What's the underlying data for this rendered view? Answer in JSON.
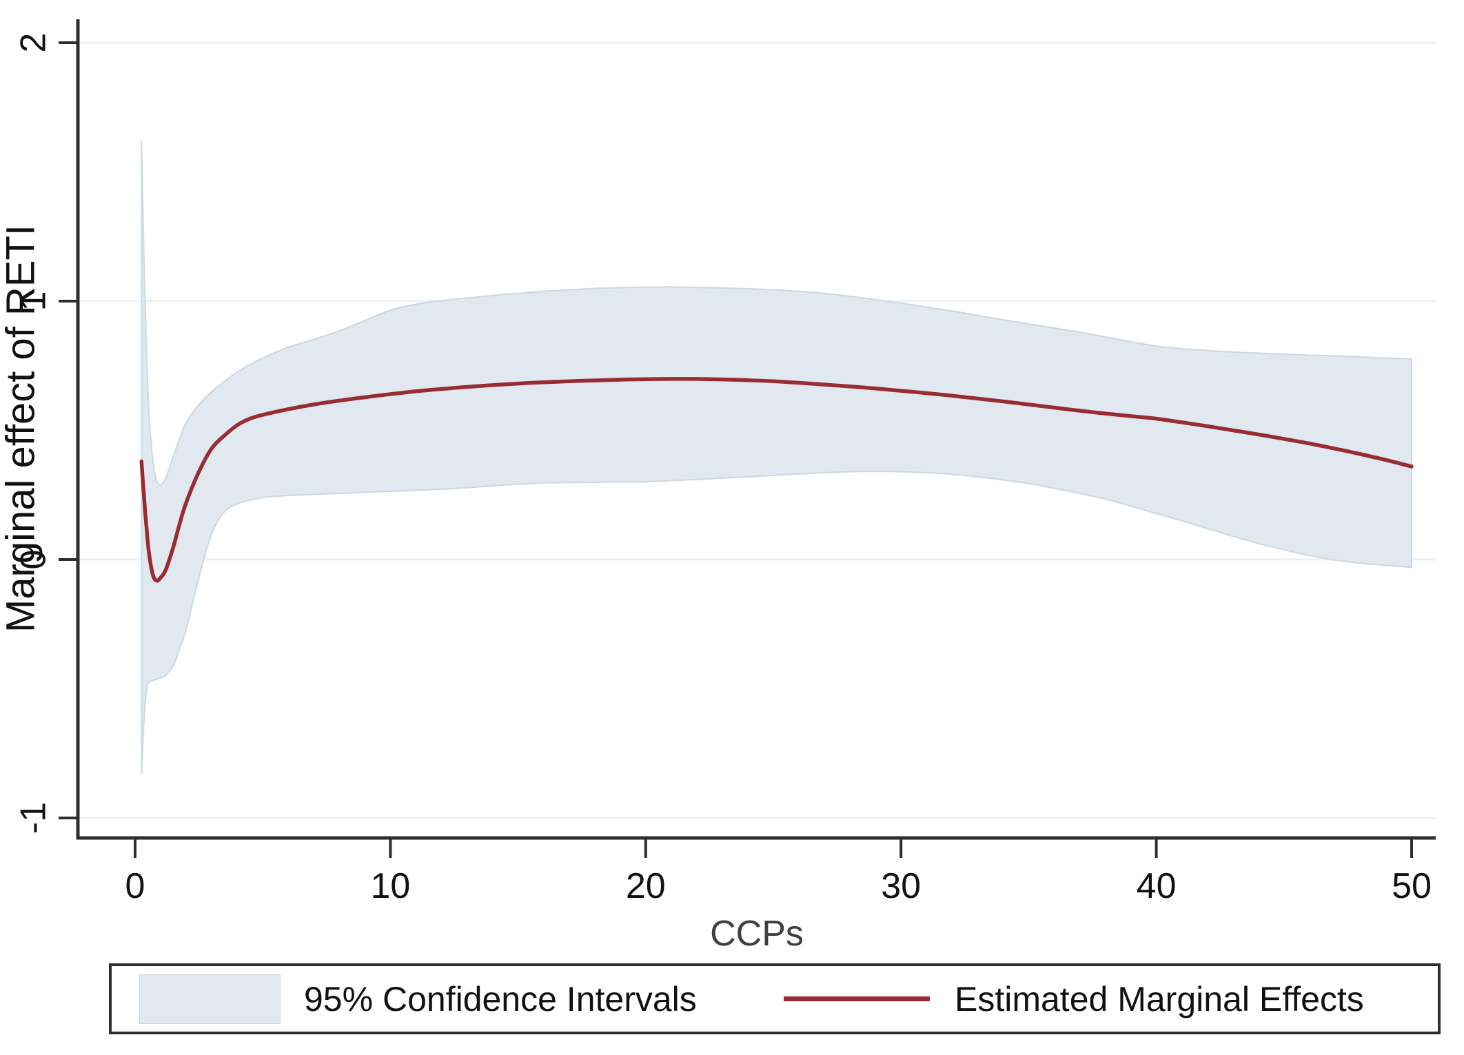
{
  "figure": {
    "background": "#ffffff",
    "axis_color": "#2e2e2e",
    "grid_color": "#e8f1f6",
    "tick_text_color": "#111111",
    "xlabel_color": "#3f3f3f",
    "ylabel_color": "#111111"
  },
  "legend": {
    "entries": [
      {
        "label": "95% Confidence Intervals",
        "swatch": "area",
        "color": "#e1e8ef"
      },
      {
        "label": "Estimated Marginal Effects",
        "swatch": "line",
        "color": "#992c33"
      }
    ]
  },
  "chart_data": {
    "type": "area",
    "title": "",
    "xlabel": "CCPs",
    "ylabel": "Marginal effect of RETI",
    "x_ticks": [
      0,
      10,
      20,
      30,
      40,
      50
    ],
    "y_ticks": [
      -1,
      0,
      1,
      2
    ],
    "xlim": [
      -2.2,
      51.0
    ],
    "ylim": [
      -1.08,
      2.09
    ],
    "grid": true,
    "legend_position": "bottom",
    "band_fill": "#e1e8ef",
    "band_edge": "#cdd8e1",
    "line_color": "#992c33",
    "line_width": 5.5,
    "series": [
      {
        "name": "Estimated Marginal Effects",
        "type": "line",
        "points": [
          [
            0.25,
            0.38
          ],
          [
            0.35,
            0.24
          ],
          [
            0.45,
            0.12
          ],
          [
            0.55,
            0.02
          ],
          [
            0.7,
            -0.06
          ],
          [
            0.85,
            -0.082
          ],
          [
            1,
            -0.07
          ],
          [
            1.2,
            -0.04
          ],
          [
            1.5,
            0.05
          ],
          [
            1.75,
            0.14
          ],
          [
            2,
            0.22
          ],
          [
            2.5,
            0.34
          ],
          [
            3,
            0.43
          ],
          [
            3.5,
            0.48
          ],
          [
            4,
            0.52
          ],
          [
            4.5,
            0.545
          ],
          [
            5,
            0.56
          ],
          [
            6,
            0.582
          ],
          [
            7,
            0.6
          ],
          [
            8,
            0.615
          ],
          [
            9,
            0.628
          ],
          [
            10,
            0.64
          ],
          [
            11,
            0.651
          ],
          [
            12,
            0.66
          ],
          [
            13,
            0.668
          ],
          [
            14,
            0.675
          ],
          [
            15,
            0.681
          ],
          [
            16,
            0.686
          ],
          [
            17,
            0.69
          ],
          [
            18,
            0.693
          ],
          [
            19,
            0.696
          ],
          [
            20,
            0.698
          ],
          [
            21,
            0.699
          ],
          [
            22,
            0.699
          ],
          [
            23,
            0.697
          ],
          [
            24,
            0.694
          ],
          [
            25,
            0.69
          ],
          [
            26,
            0.684
          ],
          [
            27,
            0.677
          ],
          [
            28,
            0.67
          ],
          [
            29,
            0.662
          ],
          [
            30,
            0.653
          ],
          [
            31,
            0.644
          ],
          [
            32,
            0.634
          ],
          [
            33,
            0.623
          ],
          [
            34,
            0.612
          ],
          [
            35,
            0.6
          ],
          [
            36,
            0.588
          ],
          [
            37,
            0.576
          ],
          [
            38,
            0.565
          ],
          [
            39,
            0.555
          ],
          [
            40,
            0.545
          ],
          [
            41,
            0.531
          ],
          [
            42,
            0.516
          ],
          [
            43,
            0.5
          ],
          [
            44,
            0.484
          ],
          [
            45,
            0.467
          ],
          [
            46,
            0.449
          ],
          [
            47,
            0.429
          ],
          [
            48,
            0.408
          ],
          [
            49,
            0.385
          ],
          [
            50,
            0.36
          ]
        ]
      },
      {
        "name": "95% Confidence Intervals",
        "type": "band",
        "points_upper": [
          [
            0.25,
            1.62
          ],
          [
            0.35,
            1.15
          ],
          [
            0.45,
            0.8
          ],
          [
            0.55,
            0.55
          ],
          [
            0.7,
            0.38
          ],
          [
            0.85,
            0.305
          ],
          [
            1,
            0.29
          ],
          [
            1.2,
            0.315
          ],
          [
            1.5,
            0.4
          ],
          [
            1.75,
            0.47
          ],
          [
            2,
            0.53
          ],
          [
            2.5,
            0.6
          ],
          [
            3,
            0.65
          ],
          [
            3.5,
            0.69
          ],
          [
            4,
            0.725
          ],
          [
            4.5,
            0.755
          ],
          [
            5,
            0.78
          ],
          [
            6,
            0.822
          ],
          [
            7,
            0.852
          ],
          [
            8,
            0.885
          ],
          [
            9,
            0.925
          ],
          [
            10,
            0.965
          ],
          [
            11,
            0.988
          ],
          [
            12,
            1.002
          ],
          [
            13,
            1.012
          ],
          [
            14,
            1.022
          ],
          [
            15,
            1.03
          ],
          [
            16,
            1.038
          ],
          [
            17,
            1.044
          ],
          [
            18,
            1.049
          ],
          [
            19,
            1.052
          ],
          [
            20,
            1.054
          ],
          [
            21,
            1.055
          ],
          [
            22,
            1.053
          ],
          [
            23,
            1.051
          ],
          [
            24,
            1.048
          ],
          [
            25,
            1.044
          ],
          [
            26,
            1.038
          ],
          [
            27,
            1.03
          ],
          [
            28,
            1.019
          ],
          [
            29,
            1.006
          ],
          [
            30,
            0.992
          ],
          [
            31,
            0.977
          ],
          [
            32,
            0.962
          ],
          [
            33,
            0.945
          ],
          [
            34,
            0.928
          ],
          [
            35,
            0.912
          ],
          [
            36,
            0.896
          ],
          [
            37,
            0.88
          ],
          [
            38,
            0.862
          ],
          [
            39,
            0.843
          ],
          [
            40,
            0.826
          ],
          [
            41,
            0.816
          ],
          [
            42,
            0.809
          ],
          [
            43,
            0.803
          ],
          [
            44,
            0.799
          ],
          [
            45,
            0.795
          ],
          [
            46,
            0.791
          ],
          [
            47,
            0.788
          ],
          [
            48,
            0.784
          ],
          [
            49,
            0.78
          ],
          [
            50,
            0.776
          ]
        ],
        "points_lower": [
          [
            0.25,
            -0.83
          ],
          [
            0.35,
            -0.62
          ],
          [
            0.45,
            -0.5
          ],
          [
            0.55,
            -0.475
          ],
          [
            0.7,
            -0.468
          ],
          [
            0.85,
            -0.463
          ],
          [
            1,
            -0.458
          ],
          [
            1.2,
            -0.448
          ],
          [
            1.5,
            -0.41
          ],
          [
            1.75,
            -0.345
          ],
          [
            2,
            -0.27
          ],
          [
            2.5,
            -0.07
          ],
          [
            3,
            0.1
          ],
          [
            3.5,
            0.185
          ],
          [
            4,
            0.215
          ],
          [
            4.5,
            0.23
          ],
          [
            5,
            0.24
          ],
          [
            6,
            0.248
          ],
          [
            7,
            0.252
          ],
          [
            8,
            0.256
          ],
          [
            9,
            0.26
          ],
          [
            10,
            0.264
          ],
          [
            11,
            0.268
          ],
          [
            12,
            0.272
          ],
          [
            13,
            0.278
          ],
          [
            14,
            0.285
          ],
          [
            15,
            0.292
          ],
          [
            16,
            0.296
          ],
          [
            17,
            0.298
          ],
          [
            18,
            0.299
          ],
          [
            19,
            0.3
          ],
          [
            20,
            0.301
          ],
          [
            21,
            0.305
          ],
          [
            22,
            0.31
          ],
          [
            23,
            0.315
          ],
          [
            24,
            0.32
          ],
          [
            25,
            0.326
          ],
          [
            26,
            0.331
          ],
          [
            27,
            0.336
          ],
          [
            28,
            0.34
          ],
          [
            29,
            0.341
          ],
          [
            30,
            0.34
          ],
          [
            31,
            0.336
          ],
          [
            32,
            0.33
          ],
          [
            33,
            0.32
          ],
          [
            34,
            0.308
          ],
          [
            35,
            0.294
          ],
          [
            36,
            0.276
          ],
          [
            37,
            0.256
          ],
          [
            38,
            0.234
          ],
          [
            39,
            0.207
          ],
          [
            40,
            0.178
          ],
          [
            41,
            0.15
          ],
          [
            42,
            0.12
          ],
          [
            43,
            0.09
          ],
          [
            44,
            0.062
          ],
          [
            45,
            0.038
          ],
          [
            46,
            0.016
          ],
          [
            47,
            -0.002
          ],
          [
            48,
            -0.014
          ],
          [
            49,
            -0.023
          ],
          [
            50,
            -0.03
          ]
        ]
      }
    ]
  }
}
